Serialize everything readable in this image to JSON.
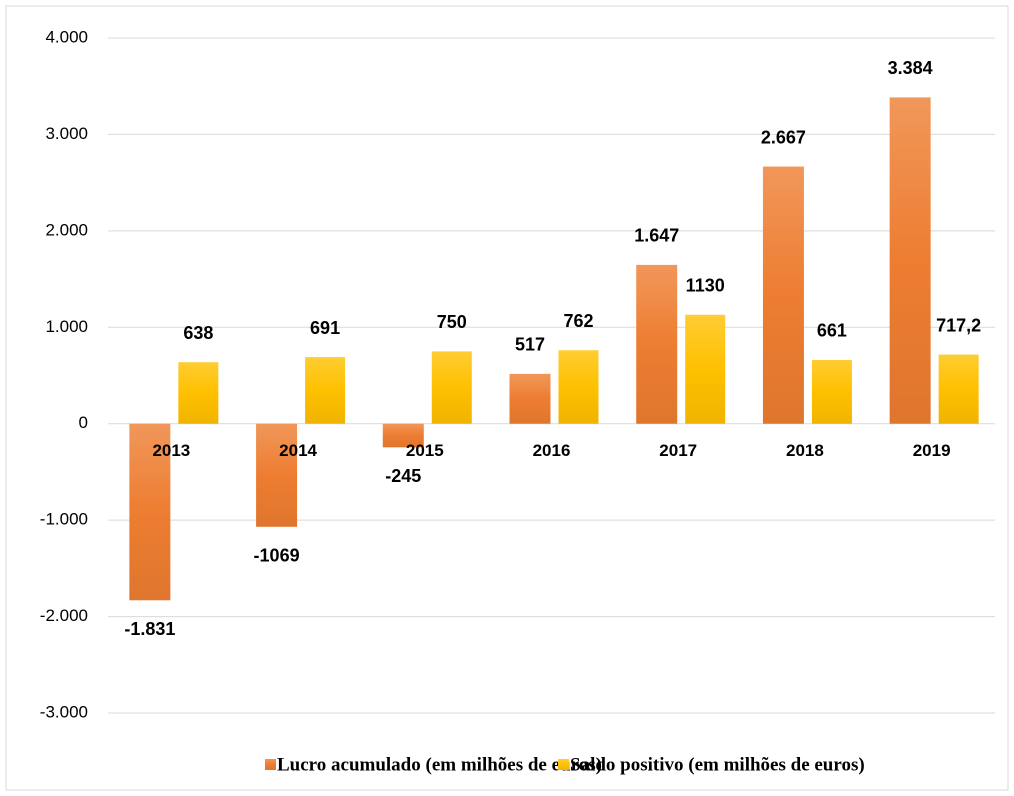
{
  "chart_data": {
    "type": "bar",
    "categories": [
      "2013",
      "2014",
      "2015",
      "2016",
      "2017",
      "2018",
      "2019"
    ],
    "series": [
      {
        "name": "Lucro acumulado (em milhões de euros)",
        "color": "#ed7d31",
        "values": [
          -1831,
          -1069,
          -245,
          517,
          1647,
          2667,
          3384
        ],
        "value_labels": [
          "-1.831",
          "-1069",
          "-245",
          "517",
          "1.647",
          "2.667",
          "3.384"
        ]
      },
      {
        "name": "Saldo positivo (em milhões de euros)",
        "color": "#ffc000",
        "values": [
          638,
          691,
          750,
          762,
          1130,
          661,
          717.2
        ],
        "value_labels": [
          "638",
          "691",
          "750",
          "762",
          "1130",
          "661",
          "717,2"
        ]
      }
    ],
    "ylim": [
      -3000,
      4000
    ],
    "yticks": [
      {
        "value": -3000,
        "label": "-3.000"
      },
      {
        "value": -2000,
        "label": "-2.000"
      },
      {
        "value": -1000,
        "label": "-1.000"
      },
      0,
      {
        "value": 1000,
        "label": "1.000"
      },
      {
        "value": 2000,
        "label": "2.000"
      },
      {
        "value": 3000,
        "label": "3.000"
      },
      {
        "value": 4000,
        "label": "4.000"
      }
    ],
    "grid": true,
    "legend": "bottom"
  }
}
